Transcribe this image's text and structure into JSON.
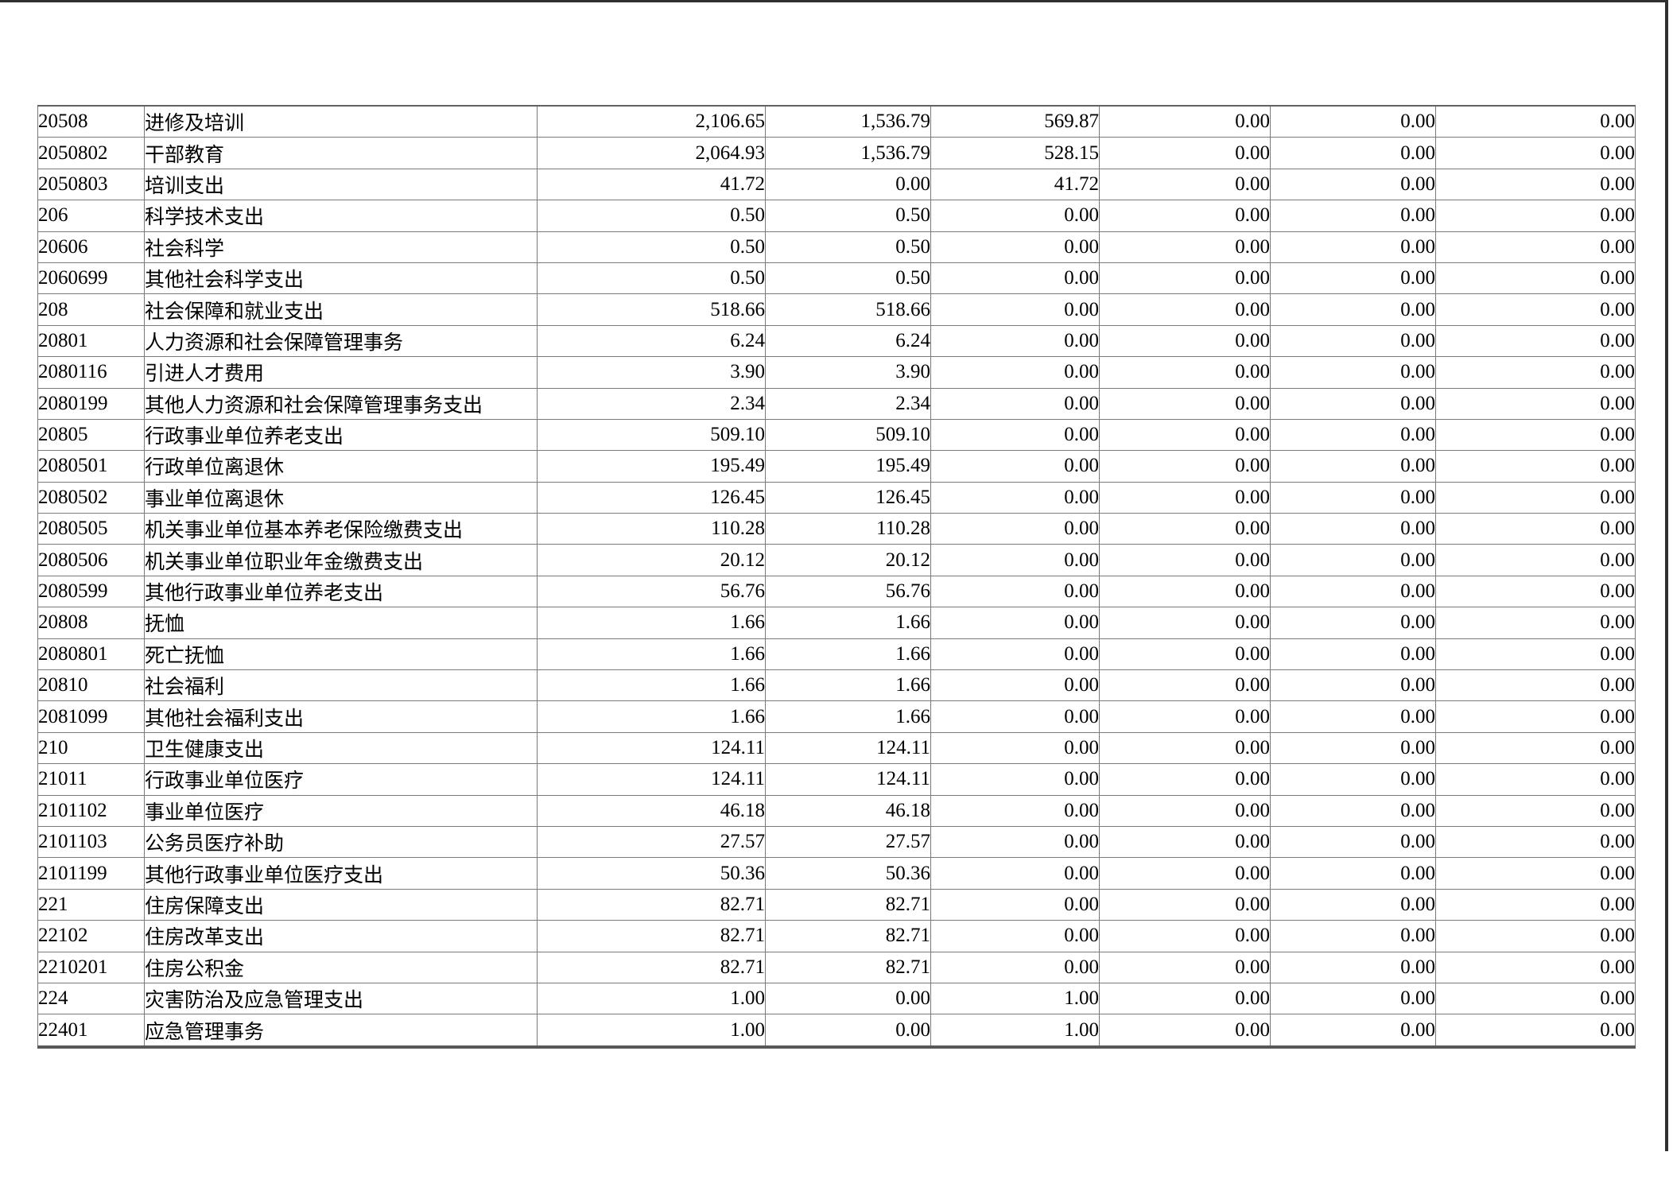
{
  "colors": {
    "page_background": "#ffffff",
    "cell_border": "#7a7a7a",
    "outer_frame": "#2f2f2f",
    "text": "#000000"
  },
  "table": {
    "rows": [
      {
        "code": "20508",
        "name": "进修及培训",
        "values": [
          "2,106.65",
          "1,536.79",
          "569.87",
          "0.00",
          "0.00",
          "0.00"
        ]
      },
      {
        "code": "2050802",
        "name": "干部教育",
        "values": [
          "2,064.93",
          "1,536.79",
          "528.15",
          "0.00",
          "0.00",
          "0.00"
        ]
      },
      {
        "code": "2050803",
        "name": "培训支出",
        "values": [
          "41.72",
          "0.00",
          "41.72",
          "0.00",
          "0.00",
          "0.00"
        ]
      },
      {
        "code": "206",
        "name": "科学技术支出",
        "values": [
          "0.50",
          "0.50",
          "0.00",
          "0.00",
          "0.00",
          "0.00"
        ]
      },
      {
        "code": "20606",
        "name": "社会科学",
        "values": [
          "0.50",
          "0.50",
          "0.00",
          "0.00",
          "0.00",
          "0.00"
        ]
      },
      {
        "code": "2060699",
        "name": "其他社会科学支出",
        "values": [
          "0.50",
          "0.50",
          "0.00",
          "0.00",
          "0.00",
          "0.00"
        ]
      },
      {
        "code": "208",
        "name": "社会保障和就业支出",
        "values": [
          "518.66",
          "518.66",
          "0.00",
          "0.00",
          "0.00",
          "0.00"
        ]
      },
      {
        "code": "20801",
        "name": "人力资源和社会保障管理事务",
        "values": [
          "6.24",
          "6.24",
          "0.00",
          "0.00",
          "0.00",
          "0.00"
        ]
      },
      {
        "code": "2080116",
        "name": "引进人才费用",
        "values": [
          "3.90",
          "3.90",
          "0.00",
          "0.00",
          "0.00",
          "0.00"
        ]
      },
      {
        "code": "2080199",
        "name": "其他人力资源和社会保障管理事务支出",
        "values": [
          "2.34",
          "2.34",
          "0.00",
          "0.00",
          "0.00",
          "0.00"
        ]
      },
      {
        "code": "20805",
        "name": "行政事业单位养老支出",
        "values": [
          "509.10",
          "509.10",
          "0.00",
          "0.00",
          "0.00",
          "0.00"
        ]
      },
      {
        "code": "2080501",
        "name": "行政单位离退休",
        "values": [
          "195.49",
          "195.49",
          "0.00",
          "0.00",
          "0.00",
          "0.00"
        ]
      },
      {
        "code": "2080502",
        "name": "事业单位离退休",
        "values": [
          "126.45",
          "126.45",
          "0.00",
          "0.00",
          "0.00",
          "0.00"
        ]
      },
      {
        "code": "2080505",
        "name": "机关事业单位基本养老保险缴费支出",
        "values": [
          "110.28",
          "110.28",
          "0.00",
          "0.00",
          "0.00",
          "0.00"
        ]
      },
      {
        "code": "2080506",
        "name": "机关事业单位职业年金缴费支出",
        "values": [
          "20.12",
          "20.12",
          "0.00",
          "0.00",
          "0.00",
          "0.00"
        ]
      },
      {
        "code": "2080599",
        "name": "其他行政事业单位养老支出",
        "values": [
          "56.76",
          "56.76",
          "0.00",
          "0.00",
          "0.00",
          "0.00"
        ]
      },
      {
        "code": "20808",
        "name": "抚恤",
        "values": [
          "1.66",
          "1.66",
          "0.00",
          "0.00",
          "0.00",
          "0.00"
        ]
      },
      {
        "code": "2080801",
        "name": "死亡抚恤",
        "values": [
          "1.66",
          "1.66",
          "0.00",
          "0.00",
          "0.00",
          "0.00"
        ]
      },
      {
        "code": "20810",
        "name": "社会福利",
        "values": [
          "1.66",
          "1.66",
          "0.00",
          "0.00",
          "0.00",
          "0.00"
        ]
      },
      {
        "code": "2081099",
        "name": "其他社会福利支出",
        "values": [
          "1.66",
          "1.66",
          "0.00",
          "0.00",
          "0.00",
          "0.00"
        ]
      },
      {
        "code": "210",
        "name": "卫生健康支出",
        "values": [
          "124.11",
          "124.11",
          "0.00",
          "0.00",
          "0.00",
          "0.00"
        ]
      },
      {
        "code": "21011",
        "name": "行政事业单位医疗",
        "values": [
          "124.11",
          "124.11",
          "0.00",
          "0.00",
          "0.00",
          "0.00"
        ]
      },
      {
        "code": "2101102",
        "name": "事业单位医疗",
        "values": [
          "46.18",
          "46.18",
          "0.00",
          "0.00",
          "0.00",
          "0.00"
        ]
      },
      {
        "code": "2101103",
        "name": "公务员医疗补助",
        "values": [
          "27.57",
          "27.57",
          "0.00",
          "0.00",
          "0.00",
          "0.00"
        ]
      },
      {
        "code": "2101199",
        "name": "其他行政事业单位医疗支出",
        "values": [
          "50.36",
          "50.36",
          "0.00",
          "0.00",
          "0.00",
          "0.00"
        ]
      },
      {
        "code": "221",
        "name": "住房保障支出",
        "values": [
          "82.71",
          "82.71",
          "0.00",
          "0.00",
          "0.00",
          "0.00"
        ]
      },
      {
        "code": "22102",
        "name": "住房改革支出",
        "values": [
          "82.71",
          "82.71",
          "0.00",
          "0.00",
          "0.00",
          "0.00"
        ]
      },
      {
        "code": "2210201",
        "name": "住房公积金",
        "values": [
          "82.71",
          "82.71",
          "0.00",
          "0.00",
          "0.00",
          "0.00"
        ]
      },
      {
        "code": "224",
        "name": "灾害防治及应急管理支出",
        "values": [
          "1.00",
          "0.00",
          "1.00",
          "0.00",
          "0.00",
          "0.00"
        ]
      },
      {
        "code": "22401",
        "name": "应急管理事务",
        "values": [
          "1.00",
          "0.00",
          "1.00",
          "0.00",
          "0.00",
          "0.00"
        ]
      }
    ]
  }
}
